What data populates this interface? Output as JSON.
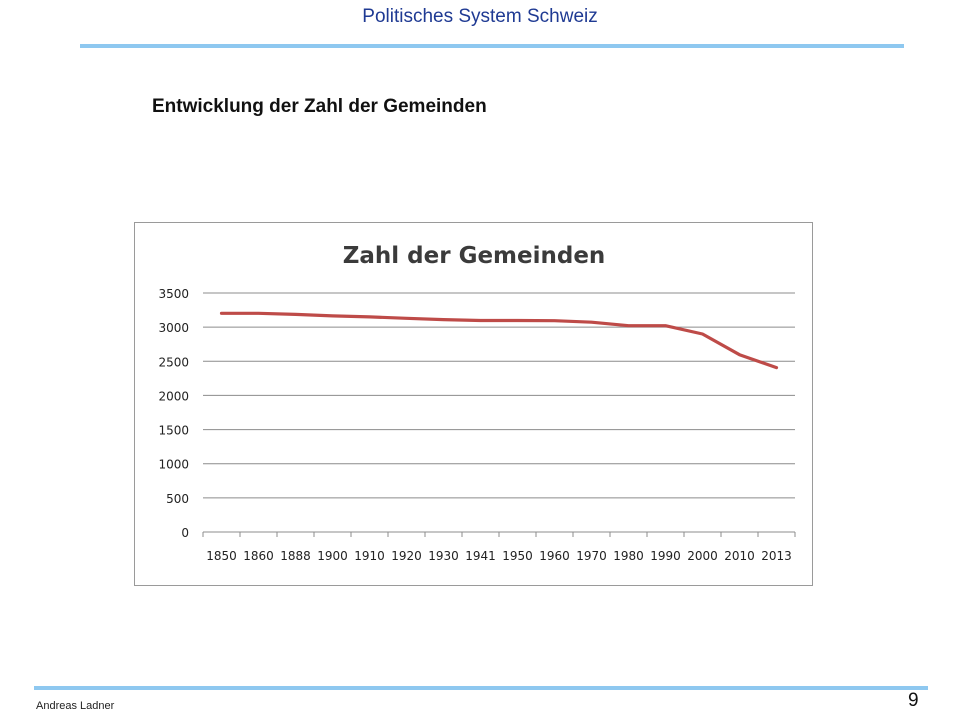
{
  "header": {
    "title": "Politisches System Schweiz"
  },
  "slide": {
    "title": "Entwicklung der Zahl der Gemeinden"
  },
  "footer": {
    "author": "Andreas Ladner",
    "page_number": "9"
  },
  "colors": {
    "accent_rule": "#8ec8f0",
    "series_line": "#be4b48",
    "grid": "#8c8c8c"
  },
  "chart_data": {
    "type": "line",
    "title": "Zahl der Gemeinden",
    "xlabel": "",
    "ylabel": "",
    "categories": [
      "1850",
      "1860",
      "1888",
      "1900",
      "1910",
      "1920",
      "1930",
      "1941",
      "1950",
      "1960",
      "1970",
      "1980",
      "1990",
      "2000",
      "2010",
      "2013"
    ],
    "series": [
      {
        "values": [
          3203,
          3203,
          3187,
          3164,
          3150,
          3130,
          3110,
          3097,
          3097,
          3095,
          3072,
          3021,
          3021,
          2899,
          2596,
          2408
        ]
      }
    ],
    "ylim": [
      0,
      3500
    ],
    "yticks": [
      "0",
      "500",
      "1000",
      "1500",
      "2000",
      "2500",
      "3000",
      "3500"
    ],
    "grid": true,
    "legend": "none"
  }
}
